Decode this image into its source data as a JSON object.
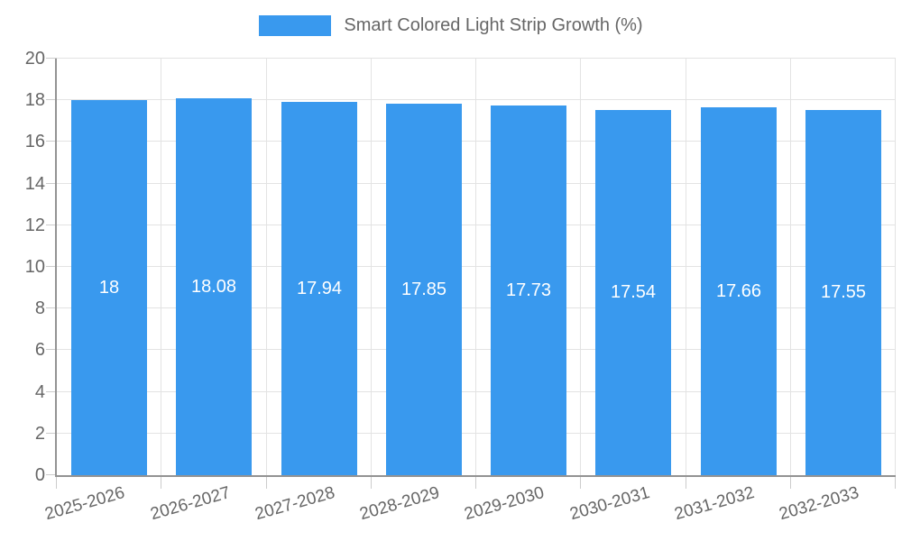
{
  "chart_data": {
    "type": "bar",
    "title": "Smart Colored Light Strip Growth (%)",
    "legend_position": "top",
    "categories": [
      "2025-2026",
      "2026-2027",
      "2027-2028",
      "2028-2029",
      "2029-2030",
      "2030-2031",
      "2031-2032",
      "2032-2033"
    ],
    "values": [
      18,
      18.08,
      17.94,
      17.85,
      17.73,
      17.54,
      17.66,
      17.55
    ],
    "xlabel": "",
    "ylabel": "",
    "ylim": [
      0,
      20
    ],
    "yticks": [
      0,
      2,
      4,
      6,
      8,
      10,
      12,
      14,
      16,
      18,
      20
    ],
    "grid": true,
    "colors": {
      "bar": "#3999ee",
      "bar_label": "#ffffff",
      "grid": "#e3e3e3",
      "tick": "#cccccc",
      "axis": "#939393",
      "text": "#666666",
      "background": "#ffffff"
    }
  }
}
